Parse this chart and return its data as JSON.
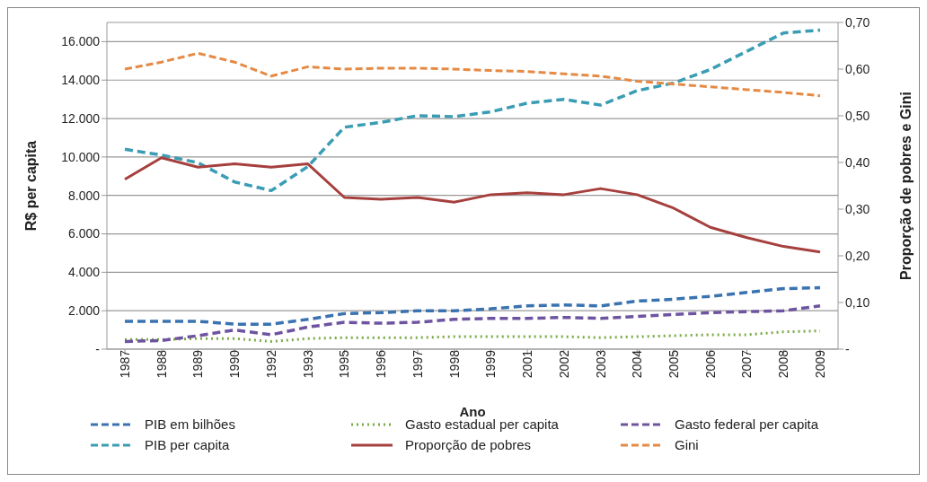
{
  "chart_data": {
    "type": "line",
    "xlabel": "Ano",
    "ylabel": "R$ per capita",
    "y2label": "Proporção de pobres e Gini",
    "categories": [
      "1987",
      "1988",
      "1989",
      "1990",
      "1992",
      "1993",
      "1995",
      "1996",
      "1997",
      "1998",
      "1999",
      "2001",
      "2002",
      "2003",
      "2004",
      "2005",
      "2006",
      "2007",
      "2008",
      "2009"
    ],
    "ylim": [
      0,
      17000
    ],
    "yticks": [
      {
        "value": 0,
        "label": "-"
      },
      {
        "value": 2000,
        "label": "2.000"
      },
      {
        "value": 4000,
        "label": "4.000"
      },
      {
        "value": 6000,
        "label": "6.000"
      },
      {
        "value": 8000,
        "label": "8.000"
      },
      {
        "value": 10000,
        "label": "10.000"
      },
      {
        "value": 12000,
        "label": "12.000"
      },
      {
        "value": 14000,
        "label": "14.000"
      },
      {
        "value": 16000,
        "label": "16.000"
      }
    ],
    "y2lim": [
      0,
      0.7
    ],
    "y2ticks": [
      {
        "value": 0,
        "label": "-"
      },
      {
        "value": 0.1,
        "label": "0,10"
      },
      {
        "value": 0.2,
        "label": "0,20"
      },
      {
        "value": 0.3,
        "label": "0,30"
      },
      {
        "value": 0.4,
        "label": "0,40"
      },
      {
        "value": 0.5,
        "label": "0,50"
      },
      {
        "value": 0.6,
        "label": "0,60"
      },
      {
        "value": 0.7,
        "label": "0,70"
      }
    ],
    "grid": "y",
    "legend": "bottom",
    "marker": "none",
    "series": [
      {
        "name": "PIB em bilhões",
        "color": "#3a73b0",
        "line_style": "dashed",
        "values": [
          1450,
          1450,
          1450,
          1300,
          1300,
          1550,
          1850,
          1900,
          2000,
          2000,
          2100,
          2250,
          2300,
          2250,
          2500,
          2600,
          2750,
          2950,
          3150,
          3200
        ]
      },
      {
        "name": "Gasto estadual per capita",
        "color": "#7aab45",
        "line_style": "dotted",
        "values": [
          500,
          500,
          550,
          550,
          400,
          550,
          600,
          600,
          600,
          650,
          650,
          650,
          650,
          600,
          650,
          700,
          750,
          750,
          900,
          950
        ]
      },
      {
        "name": "Gasto federal per capita",
        "color": "#6e54a0",
        "line_style": "dashed",
        "values": [
          400,
          450,
          700,
          1000,
          750,
          1150,
          1400,
          1350,
          1400,
          1550,
          1600,
          1600,
          1650,
          1600,
          1700,
          1800,
          1900,
          1950,
          2000,
          2250
        ]
      },
      {
        "name": "PIB per capita",
        "color": "#3a9db4",
        "line_style": "dashed",
        "values": [
          10400,
          10100,
          9700,
          8700,
          8250,
          9500,
          11550,
          11800,
          12150,
          12100,
          12350,
          12800,
          13000,
          12700,
          13450,
          13850,
          14550,
          15500,
          16450,
          16600
        ]
      },
      {
        "name": "Proporção de pobres",
        "color": "#a6403e",
        "line_style": "solid",
        "axis": "y2",
        "values": [
          0.364,
          0.41,
          0.39,
          0.397,
          0.39,
          0.397,
          0.325,
          0.321,
          0.325,
          0.315,
          0.331,
          0.335,
          0.331,
          0.344,
          0.331,
          0.302,
          0.261,
          0.239,
          0.22,
          0.208
        ]
      },
      {
        "name": "Gini",
        "color": "#e58a45",
        "line_style": "dashed",
        "axis": "y2",
        "values": [
          0.6,
          0.615,
          0.634,
          0.615,
          0.585,
          0.605,
          0.6,
          0.602,
          0.602,
          0.6,
          0.597,
          0.595,
          0.59,
          0.585,
          0.574,
          0.568,
          0.562,
          0.556,
          0.55,
          0.543
        ]
      }
    ]
  }
}
